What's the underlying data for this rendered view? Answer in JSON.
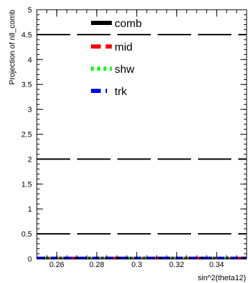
{
  "chart_data": {
    "type": "line",
    "title": "",
    "xlabel": "sin^2(theta12)",
    "ylabel": "Projection of nll_comb",
    "xlim": [
      0.25,
      0.355
    ],
    "ylim": [
      0,
      5
    ],
    "x_ticks": [
      0.26,
      0.28,
      0.3,
      0.32,
      0.34
    ],
    "x_tick_labels": [
      "0.26",
      "0.28",
      "0.3",
      "0.32",
      "0.34"
    ],
    "y_ticks": [
      0,
      0.5,
      1,
      1.5,
      2,
      2.5,
      3,
      3.5,
      4,
      4.5,
      5
    ],
    "y_tick_labels": [
      "0",
      "0.5",
      "1",
      "1.5",
      "2",
      "2.5",
      "3",
      "3.5",
      "4",
      "4.5",
      "5"
    ],
    "reference_lines": [
      0.5,
      2,
      4.5
    ],
    "legend_position": "top-left",
    "series": [
      {
        "name": "comb",
        "color": "#000000",
        "dash": "solid",
        "x": [
          0.25,
          0.26,
          0.27,
          0.28,
          0.29,
          0.3,
          0.31,
          0.32,
          0.33,
          0.34,
          0.35,
          0.355
        ],
        "values": [
          0,
          0,
          0,
          0,
          0,
          0,
          0,
          0,
          0,
          0,
          0,
          0
        ]
      },
      {
        "name": "mid",
        "color": "#ff0000",
        "dash": "dashed",
        "x": [
          0.25,
          0.26,
          0.27,
          0.28,
          0.29,
          0.3,
          0.31,
          0.32,
          0.33,
          0.34,
          0.35,
          0.355
        ],
        "values": [
          0,
          0,
          0,
          0,
          0,
          0,
          0,
          0,
          0,
          0,
          0,
          0
        ]
      },
      {
        "name": "shw",
        "color": "#00ff00",
        "dash": "dotted",
        "x": [
          0.25,
          0.26,
          0.27,
          0.28,
          0.29,
          0.3,
          0.31,
          0.32,
          0.33,
          0.34,
          0.35,
          0.355
        ],
        "values": [
          0,
          0,
          0,
          0,
          0,
          0,
          0,
          0,
          0,
          0,
          0,
          0
        ]
      },
      {
        "name": "trk",
        "color": "#0000ff",
        "dash": "dashdot",
        "x": [
          0.25,
          0.26,
          0.27,
          0.28,
          0.29,
          0.3,
          0.31,
          0.32,
          0.33,
          0.34,
          0.35,
          0.355
        ],
        "values": [
          0,
          0,
          0,
          0,
          0,
          0,
          0,
          0,
          0,
          0,
          0,
          0
        ]
      }
    ]
  }
}
